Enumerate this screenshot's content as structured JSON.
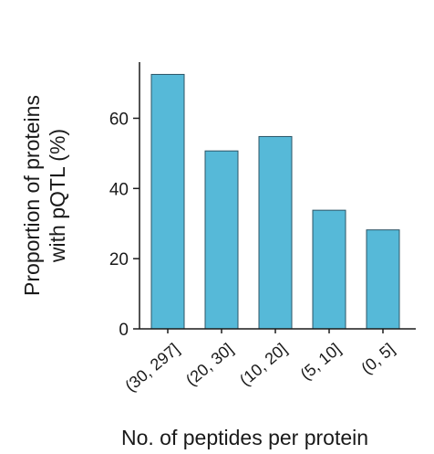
{
  "chart_data": {
    "type": "bar",
    "categories": [
      "(30, 297]",
      "(20, 30]",
      "(10, 20]",
      "(5, 10]",
      "(0, 5]"
    ],
    "values": [
      72.5,
      50.7,
      54.8,
      33.8,
      28.2
    ],
    "xlabel": "No. of peptides per protein",
    "ylabel_lines": [
      "Proportion of proteins",
      "with pQTL (%)"
    ],
    "ylim": [
      0,
      76
    ],
    "yticks": [
      0,
      20,
      40,
      60
    ],
    "colors": {
      "bar_fill": "#56b9d8",
      "bar_stroke": "#2d5566",
      "axis": "#1a1a1a"
    },
    "grid": false,
    "legend": "none"
  }
}
